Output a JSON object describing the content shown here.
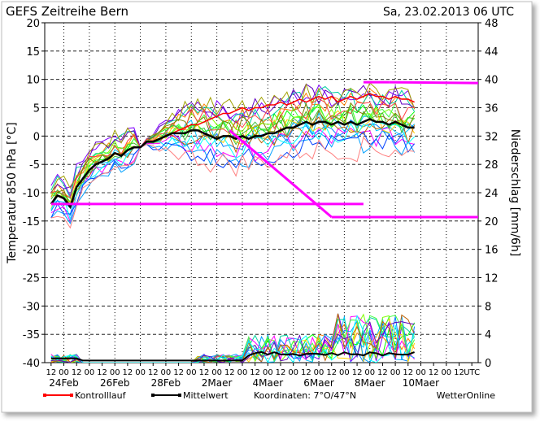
{
  "header": {
    "title": "GEFS Zeitreihe Bern",
    "run": "Sa, 23.02.2013 06 UTC"
  },
  "footer": {
    "kontroll_label": "Kontrolllauf",
    "mittel_label": "Mittelwert",
    "koordinaten": "Koordinaten: 7°O/47°N",
    "source": "WetterOnline"
  },
  "colors": {
    "kontrolllauf": "#ff0000",
    "mittelwert": "#000000",
    "envelope": "#ff00ff",
    "grid": "#000000"
  },
  "chart_data": {
    "type": "line",
    "title": "GEFS Zeitreihe Bern",
    "ylabel": "Temperatur 850 hPa [°C]",
    "y2label": "Niederschlag [mm/6h]",
    "ylim": [
      -40,
      20
    ],
    "y2lim": [
      0,
      48
    ],
    "yticks": [
      20,
      15,
      10,
      5,
      0,
      -5,
      -10,
      -15,
      -20,
      -25,
      -30,
      -35,
      -40
    ],
    "y2ticks": [
      48,
      44,
      40,
      36,
      32,
      28,
      24,
      20,
      16,
      12,
      8,
      4,
      0
    ],
    "x_hour_labels": [
      "12",
      "00",
      "12",
      "00",
      "12",
      "00",
      "12",
      "00",
      "12",
      "00",
      "12",
      "00",
      "12",
      "00",
      "12",
      "00",
      "12",
      "00",
      "12",
      "00",
      "12",
      "00",
      "12",
      "00",
      "12",
      "00",
      "12",
      "00",
      "12",
      "00",
      "12",
      "00",
      "12",
      "UTC"
    ],
    "x_date_labels": [
      "24Feb",
      "26Feb",
      "28Feb",
      "2Maer",
      "4Maer",
      "6Maer",
      "8Maer",
      "10Maer"
    ],
    "grid": "dotted vertical at 00 UTC, dashed horizontal every 5 °C",
    "legend": "bottom",
    "mittelwert": [
      -12,
      -10.5,
      -11,
      -12.5,
      -9,
      -7.5,
      -6,
      -5,
      -4.5,
      -4,
      -3,
      -3.5,
      -2.5,
      -2,
      -2,
      -1,
      -1,
      -0.5,
      0,
      0.5,
      0.5,
      0.5,
      1,
      1,
      0.5,
      0,
      -0.5,
      0,
      0,
      -0.5,
      0,
      -0.5,
      0,
      0,
      0.5,
      0.5,
      1,
      1.5,
      1.5,
      2,
      2.5,
      2,
      2.5,
      2.5,
      2,
      2.5,
      2,
      2.5,
      2,
      2.5,
      3,
      2.5,
      2.5,
      2,
      2.5,
      2,
      1.5,
      1.5
    ],
    "kontrolllauf": [
      -12,
      -10.5,
      -11,
      -12.5,
      -9,
      -7.5,
      -6,
      -5,
      -4.5,
      -4,
      -3,
      -3.5,
      -2.5,
      -2,
      -2,
      -1,
      -1,
      -0.5,
      0,
      0.5,
      1,
      1.5,
      2,
      2,
      2.5,
      3,
      3.5,
      4,
      4,
      4.5,
      5,
      4.5,
      5,
      5,
      5.5,
      5.5,
      6,
      5.5,
      6,
      6.5,
      6,
      6.5,
      7,
      6.5,
      7,
      6,
      6.5,
      7,
      6.5,
      7,
      7.5,
      7,
      7,
      6.5,
      7,
      6.5,
      6.5,
      6
    ],
    "envelope_upper": [
      [
        -12,
        -12
      ],
      [
        9.5,
        9.5
      ],
      [
        9.5,
        9.3
      ]
    ],
    "envelope_upper_x": [
      [
        0,
        24.5
      ],
      [
        24.5,
        26.5
      ],
      [
        26.5,
        37
      ]
    ],
    "envelope_lower": [
      [
        1,
        -14.3
      ],
      [
        -14.3,
        -14.3
      ]
    ],
    "envelope_lower_x": [
      [
        14,
        22
      ],
      [
        22,
        37
      ]
    ],
    "precip_mittel_max": 1.5
  }
}
